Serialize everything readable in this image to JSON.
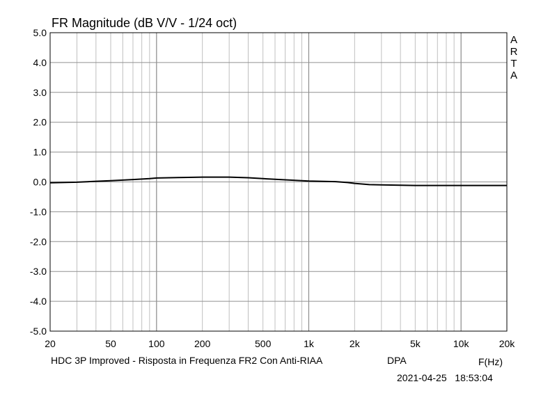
{
  "chart_data": {
    "type": "line",
    "title": "FR Magnitude (dB V/V - 1/24 oct)",
    "watermark": [
      "A",
      "R",
      "T",
      "A"
    ],
    "xlabel": "F(Hz)",
    "ylabel": "",
    "x_scale": "log",
    "xlim": [
      20,
      20000
    ],
    "ylim": [
      -5.0,
      5.0
    ],
    "grid": true,
    "x_ticks": [
      {
        "value": 20,
        "label": "20"
      },
      {
        "value": 50,
        "label": "50"
      },
      {
        "value": 100,
        "label": "100"
      },
      {
        "value": 200,
        "label": "200"
      },
      {
        "value": 500,
        "label": "500"
      },
      {
        "value": 1000,
        "label": "1k"
      },
      {
        "value": 2000,
        "label": "2k"
      },
      {
        "value": 5000,
        "label": "5k"
      },
      {
        "value": 10000,
        "label": "10k"
      },
      {
        "value": 20000,
        "label": "20k"
      }
    ],
    "y_ticks": [
      {
        "value": 5,
        "label": "5.0"
      },
      {
        "value": 4,
        "label": "4.0"
      },
      {
        "value": 3,
        "label": "3.0"
      },
      {
        "value": 2,
        "label": "2.0"
      },
      {
        "value": 1,
        "label": "1.0"
      },
      {
        "value": 0,
        "label": "0.0"
      },
      {
        "value": -1,
        "label": "-1.0"
      },
      {
        "value": -2,
        "label": "-2.0"
      },
      {
        "value": -3,
        "label": "-3.0"
      },
      {
        "value": -4,
        "label": "-4.0"
      },
      {
        "value": -5,
        "label": "-5.0"
      }
    ],
    "series": [
      {
        "name": "",
        "color": "#000000",
        "x": [
          20,
          30,
          40,
          50,
          70,
          90,
          100,
          150,
          200,
          300,
          400,
          500,
          700,
          1000,
          1500,
          1800,
          2000,
          2500,
          3000,
          4000,
          5000,
          7000,
          10000,
          15000,
          20000
        ],
        "y": [
          -0.03,
          -0.01,
          0.02,
          0.04,
          0.08,
          0.11,
          0.13,
          0.15,
          0.16,
          0.16,
          0.14,
          0.11,
          0.07,
          0.03,
          0.01,
          -0.02,
          -0.05,
          -0.09,
          -0.1,
          -0.11,
          -0.12,
          -0.12,
          -0.12,
          -0.12,
          -0.12
        ]
      }
    ]
  },
  "footer": {
    "description": "HDC 3P Improved - Risposta in Frequenza FR2 Con Anti-RIAA",
    "tag": "DPA",
    "timestamp": "2021-04-25   18:53:04"
  }
}
